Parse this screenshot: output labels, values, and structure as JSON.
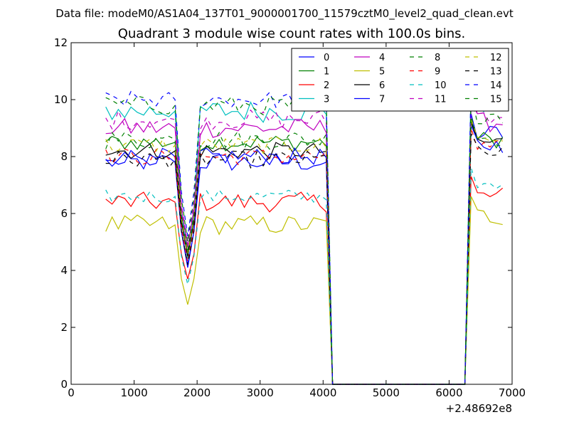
{
  "chart_data": {
    "type": "line",
    "suptitle": "Data file: modeM0/AS1A04_137T01_9000001700_11579cztM0_level2_quad_clean.evt",
    "title": "Quadrant 3 module wise count rates with 100.0s bins.",
    "xlabel": "",
    "ylabel": "",
    "x_offset_label": "+2.48692e8",
    "xlim": [
      0,
      7000
    ],
    "ylim": [
      0,
      12
    ],
    "xticks": [
      0,
      1000,
      2000,
      3000,
      4000,
      5000,
      6000,
      7000
    ],
    "xtick_labels": [
      "0",
      "1000",
      "2000",
      "3000",
      "4000",
      "5000",
      "6000",
      "7000"
    ],
    "yticks": [
      0,
      2,
      4,
      6,
      8,
      10,
      12
    ],
    "ytick_labels": [
      "0",
      "2",
      "4",
      "6",
      "8",
      "10",
      "12"
    ],
    "legend_position": "top-right",
    "legend_columns": 4,
    "x_segments": [
      {
        "start": 550,
        "step": 100,
        "count": 37
      },
      {
        "start": 6250,
        "step": 100,
        "count": 7
      }
    ],
    "series": [
      {
        "name": "0",
        "color": "#0000ff",
        "dash": "solid",
        "level": 7.8,
        "spread": 0.35,
        "dip": 4.2,
        "end": 8.8
      },
      {
        "name": "1",
        "color": "#008000",
        "dash": "solid",
        "level": 8.5,
        "spread": 0.3,
        "dip": 4.6,
        "end": 8.6
      },
      {
        "name": "2",
        "color": "#ff0000",
        "dash": "solid",
        "level": 6.4,
        "spread": 0.35,
        "dip": 3.7,
        "end": 6.6
      },
      {
        "name": "3",
        "color": "#00bfbf",
        "dash": "solid",
        "level": 9.6,
        "spread": 0.4,
        "dip": 4.4,
        "end": 9.9
      },
      {
        "name": "4",
        "color": "#bf00bf",
        "dash": "solid",
        "level": 9.0,
        "spread": 0.35,
        "dip": 4.8,
        "end": 9.2
      },
      {
        "name": "5",
        "color": "#bfbf00",
        "dash": "solid",
        "level": 5.6,
        "spread": 0.35,
        "dip": 2.8,
        "end": 5.9
      },
      {
        "name": "6",
        "color": "#000000",
        "dash": "solid",
        "level": 8.2,
        "spread": 0.3,
        "dip": 4.5,
        "end": 8.5
      },
      {
        "name": "7",
        "color": "#0000ff",
        "dash": "solid",
        "level": 8.0,
        "spread": 0.3,
        "dip": 4.1,
        "end": 8.4
      },
      {
        "name": "8",
        "color": "#008000",
        "dash": "dashed",
        "level": 8.6,
        "spread": 0.35,
        "dip": 4.7,
        "end": 8.7
      },
      {
        "name": "9",
        "color": "#ff0000",
        "dash": "dashed",
        "level": 8.0,
        "spread": 0.3,
        "dip": 4.3,
        "end": 8.3
      },
      {
        "name": "10",
        "color": "#00bfbf",
        "dash": "dashed",
        "level": 6.6,
        "spread": 0.25,
        "dip": 3.5,
        "end": 6.9
      },
      {
        "name": "11",
        "color": "#bf00bf",
        "dash": "dashed",
        "level": 9.3,
        "spread": 0.35,
        "dip": 4.9,
        "end": 9.5
      },
      {
        "name": "12",
        "color": "#bfbf00",
        "dash": "dashed",
        "level": 8.4,
        "spread": 0.3,
        "dip": 4.6,
        "end": 8.6
      },
      {
        "name": "13",
        "color": "#000000",
        "dash": "dashed",
        "level": 7.9,
        "spread": 0.3,
        "dip": 4.2,
        "end": 8.1
      },
      {
        "name": "14",
        "color": "#0000ff",
        "dash": "dashed",
        "level": 10.0,
        "spread": 0.3,
        "dip": 5.2,
        "end": 10.0
      },
      {
        "name": "15",
        "color": "#008000",
        "dash": "dashed",
        "level": 9.8,
        "spread": 0.35,
        "dip": 5.0,
        "end": 9.5
      }
    ]
  }
}
